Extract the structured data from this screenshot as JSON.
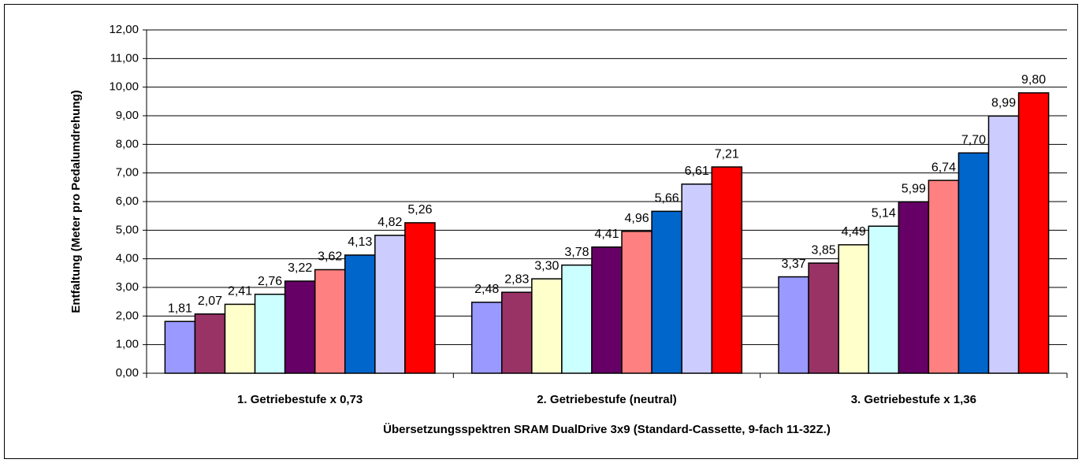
{
  "chart_data": {
    "type": "bar",
    "y_label": "Entfaltung (Meter pro Pedalumdrehung)",
    "x_label": "Übersetzungsspektren SRAM DualDrive 3x9 (Standard-Cassette, 9-fach 11-32Z.)",
    "categories": [
      "1. Getriebestufe x 0,73",
      "2. Getriebestufe (neutral)",
      "3. Getriebestufe x 1,36"
    ],
    "series": [
      {
        "color": "#9999ff",
        "values": [
          1.81,
          2.48,
          3.37
        ],
        "value_labels": [
          "1,81",
          "2,48",
          "3,37"
        ]
      },
      {
        "color": "#993366",
        "values": [
          2.07,
          2.83,
          3.85
        ],
        "value_labels": [
          "2,07",
          "2,83",
          "3,85"
        ]
      },
      {
        "color": "#ffffcc",
        "values": [
          2.41,
          3.3,
          4.49
        ],
        "value_labels": [
          "2,41",
          "3,30",
          "4,49"
        ]
      },
      {
        "color": "#ccffff",
        "values": [
          2.76,
          3.78,
          5.14
        ],
        "value_labels": [
          "2,76",
          "3,78",
          "5,14"
        ]
      },
      {
        "color": "#660066",
        "values": [
          3.22,
          4.41,
          5.99
        ],
        "value_labels": [
          "3,22",
          "4,41",
          "5,99"
        ]
      },
      {
        "color": "#ff8080",
        "values": [
          3.62,
          4.96,
          6.74
        ],
        "value_labels": [
          "3,62",
          "4,96",
          "6,74"
        ]
      },
      {
        "color": "#0066cc",
        "values": [
          4.13,
          5.66,
          7.7
        ],
        "value_labels": [
          "4,13",
          "5,66",
          "7,70"
        ]
      },
      {
        "color": "#ccccff",
        "values": [
          4.82,
          6.61,
          8.99
        ],
        "value_labels": [
          "4,82",
          "6,61",
          "8,99"
        ]
      },
      {
        "color": "#ff0000",
        "values": [
          5.26,
          7.21,
          9.8
        ],
        "value_labels": [
          "5,26",
          "7,21",
          "9,80"
        ]
      }
    ],
    "ylim": [
      0,
      12
    ],
    "yticks": [
      {
        "value": 0,
        "label": "0,00"
      },
      {
        "value": 1,
        "label": "1,00"
      },
      {
        "value": 2,
        "label": "2,00"
      },
      {
        "value": 3,
        "label": "3,00"
      },
      {
        "value": 4,
        "label": "4,00"
      },
      {
        "value": 5,
        "label": "5,00"
      },
      {
        "value": 6,
        "label": "6,00"
      },
      {
        "value": 7,
        "label": "7,00"
      },
      {
        "value": 8,
        "label": "8,00"
      },
      {
        "value": 9,
        "label": "9,00"
      },
      {
        "value": 10,
        "label": "10,00"
      },
      {
        "value": 11,
        "label": "11,00"
      },
      {
        "value": 12,
        "label": "12,00"
      }
    ],
    "grid": true
  }
}
